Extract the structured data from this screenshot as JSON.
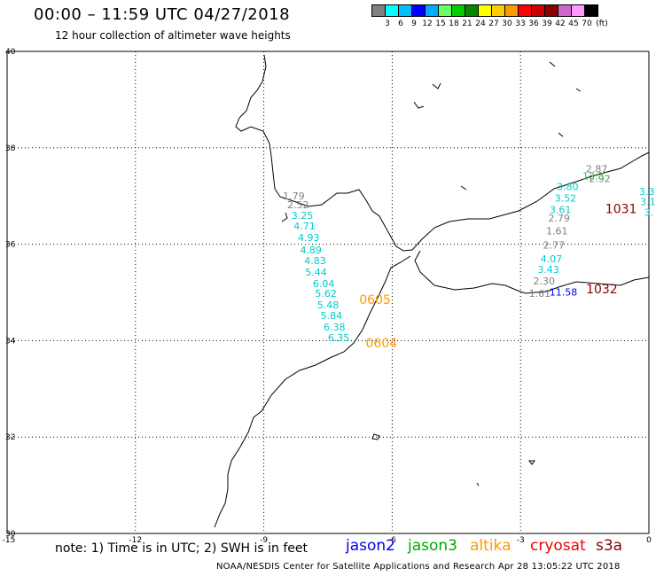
{
  "header": {
    "title": "00:00 – 11:59 UTC 04/27/2018",
    "subtitle": "12 hour collection of altimeter wave heights"
  },
  "scale": {
    "unit": "(ft)",
    "colors": [
      "#808080",
      "#00ffff",
      "#00bfff",
      "#0000ff",
      "#00aaff",
      "#66ff66",
      "#00cc00",
      "#008800",
      "#ffff00",
      "#ffcc00",
      "#ff9900",
      "#ff0000",
      "#cc0000",
      "#880000",
      "#cc66cc",
      "#ff99ff",
      "#000000"
    ],
    "labels": [
      "3",
      "6",
      "9",
      "12",
      "15",
      "18",
      "21",
      "24",
      "27",
      "30",
      "33",
      "36",
      "39",
      "42",
      "45",
      "70"
    ]
  },
  "axes": {
    "lon_labels": [
      "-15",
      "-12",
      "-9",
      "-6",
      "-3",
      "0"
    ],
    "lat_labels": [
      "40",
      "38",
      "36",
      "34",
      "32",
      "30"
    ]
  },
  "chart_data": {
    "type": "scatter",
    "xlim": [
      -15,
      0
    ],
    "ylim": [
      30,
      40
    ],
    "grid": true,
    "points": [
      {
        "x": -8.3,
        "y": 37.0,
        "label": "1.79",
        "color": "#808080"
      },
      {
        "x": -8.2,
        "y": 36.82,
        "label": "2.52",
        "color": "#808080"
      },
      {
        "x": -8.1,
        "y": 36.6,
        "label": "3.25",
        "color": "#00cccc"
      },
      {
        "x": -8.05,
        "y": 36.38,
        "label": "4.71",
        "color": "#00cccc"
      },
      {
        "x": -7.95,
        "y": 36.14,
        "label": "4.93",
        "color": "#00cccc"
      },
      {
        "x": -7.9,
        "y": 35.88,
        "label": "4.89",
        "color": "#00cccc"
      },
      {
        "x": -7.8,
        "y": 35.66,
        "label": "4.83",
        "color": "#00cccc"
      },
      {
        "x": -7.78,
        "y": 35.42,
        "label": "5.44",
        "color": "#00cccc"
      },
      {
        "x": -7.6,
        "y": 35.18,
        "label": "6.04",
        "color": "#00cccc"
      },
      {
        "x": -7.55,
        "y": 34.98,
        "label": "5.62",
        "color": "#00cccc"
      },
      {
        "x": -7.5,
        "y": 34.74,
        "label": "5.48",
        "color": "#00cccc"
      },
      {
        "x": -7.42,
        "y": 34.52,
        "label": "5.84",
        "color": "#00cccc"
      },
      {
        "x": -7.35,
        "y": 34.28,
        "label": "6.38",
        "color": "#00cccc"
      },
      {
        "x": -7.25,
        "y": 34.06,
        "label": "6.35",
        "color": "#00cccc"
      },
      {
        "x": -1.22,
        "y": 37.56,
        "label": "2.87",
        "color": "#808080"
      },
      {
        "x": -1.15,
        "y": 37.36,
        "label": "2.92",
        "color": "#808080"
      },
      {
        "x": -1.3,
        "y": 37.42,
        "label": "12.3",
        "color": "#33cc33"
      },
      {
        "x": -1.9,
        "y": 37.2,
        "label": "3.80",
        "color": "#00cccc"
      },
      {
        "x": -1.95,
        "y": 36.96,
        "label": "3.52",
        "color": "#00cccc"
      },
      {
        "x": -2.07,
        "y": 36.72,
        "label": "3.61",
        "color": "#00cccc"
      },
      {
        "x": -2.1,
        "y": 36.54,
        "label": "2.79",
        "color": "#808080"
      },
      {
        "x": -2.15,
        "y": 36.28,
        "label": "1.61",
        "color": "#808080"
      },
      {
        "x": -2.22,
        "y": 35.98,
        "label": "2.77",
        "color": "#808080"
      },
      {
        "x": -2.28,
        "y": 35.7,
        "label": "4.07",
        "color": "#00cccc"
      },
      {
        "x": -2.35,
        "y": 35.48,
        "label": "3.43",
        "color": "#00cccc"
      },
      {
        "x": -2.45,
        "y": 35.24,
        "label": "2.30",
        "color": "#808080"
      },
      {
        "x": -2.55,
        "y": 34.98,
        "label": "1.61",
        "color": "#808080"
      },
      {
        "x": -0.05,
        "y": 37.1,
        "label": "3.3",
        "color": "#00cccc"
      },
      {
        "x": -0.02,
        "y": 36.88,
        "label": "3.1",
        "color": "#00cccc"
      },
      {
        "x": 0.0,
        "y": 36.66,
        "label": "3.",
        "color": "#00cccc"
      }
    ],
    "annotations": [
      {
        "x": -6.4,
        "y": 34.85,
        "label": "0605",
        "color": "#ff9900"
      },
      {
        "x": -6.25,
        "y": 33.95,
        "label": "0604",
        "color": "#ff9900"
      },
      {
        "x": -0.65,
        "y": 36.74,
        "label": "1031",
        "color": "#880000"
      },
      {
        "x": -1.1,
        "y": 35.07,
        "label": "1032",
        "color": "#880000"
      },
      {
        "x": -2.0,
        "y": 35.03,
        "label": "11.58",
        "color": "#0000ff"
      }
    ]
  },
  "note": "note: 1) Time is in UTC; 2) SWH is in feet",
  "satellites": [
    {
      "name": "jason2",
      "color": "#0000ee"
    },
    {
      "name": "jason3",
      "color": "#00aa00"
    },
    {
      "name": "altika",
      "color": "#ff9900"
    },
    {
      "name": "cryosat",
      "color": "#ee0000"
    },
    {
      "name": "s3a",
      "color": "#880000"
    }
  ],
  "footer": "NOAA/NESDIS Center for Satellite Applications and Research   Apr 28 13:05:22 UTC 2018"
}
